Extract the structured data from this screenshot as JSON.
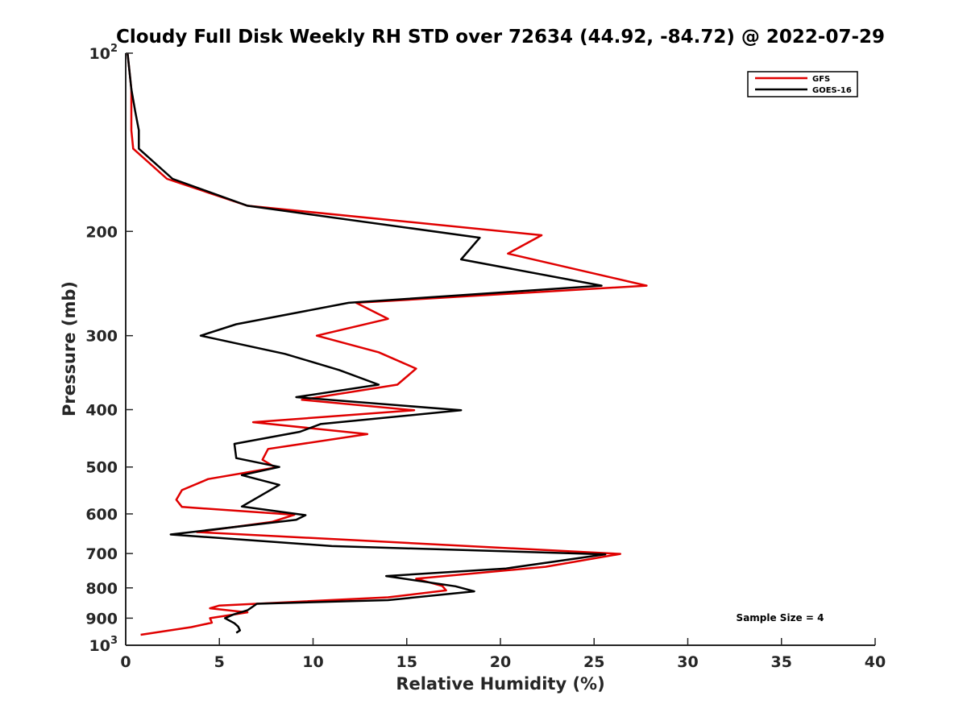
{
  "chart_data": {
    "type": "line",
    "title": "Cloudy Full Disk Weekly RH STD over 72634 (44.92, -84.72) @ 2022-07-29",
    "xlabel": "Relative Humidity (%)",
    "ylabel": "Pressure (mb)",
    "xlim": [
      0,
      40
    ],
    "ylim": [
      100,
      1000
    ],
    "y_scale": "log",
    "y_reversed": true,
    "grid": false,
    "legend_position": "top-right",
    "x_ticks": [
      "0",
      "5",
      "10",
      "15",
      "20",
      "25",
      "30",
      "35",
      "40"
    ],
    "y_ticks": [
      {
        "value": 100,
        "base": "10",
        "exp": "2"
      },
      {
        "value": 200,
        "label": "200"
      },
      {
        "value": 300,
        "label": "300"
      },
      {
        "value": 400,
        "label": "400"
      },
      {
        "value": 500,
        "label": "500"
      },
      {
        "value": 600,
        "label": "600"
      },
      {
        "value": 700,
        "label": "700"
      },
      {
        "value": 800,
        "label": "800"
      },
      {
        "value": 900,
        "label": "900"
      },
      {
        "value": 1000,
        "base": "10",
        "exp": "3"
      }
    ],
    "annotation": "Sample Size = 4",
    "series": [
      {
        "name": "GFS",
        "color": "#e00000",
        "points": [
          [
            0.1,
            100
          ],
          [
            0.3,
            115
          ],
          [
            0.3,
            125
          ],
          [
            0.3,
            135
          ],
          [
            0.4,
            145
          ],
          [
            2.2,
            163
          ],
          [
            6.5,
            181
          ],
          [
            22.2,
            203
          ],
          [
            20.4,
            218
          ],
          [
            27.8,
            247
          ],
          [
            12.3,
            264
          ],
          [
            14.0,
            281
          ],
          [
            10.2,
            300
          ],
          [
            13.5,
            320
          ],
          [
            15.5,
            341
          ],
          [
            14.5,
            363
          ],
          [
            9.4,
            385
          ],
          [
            15.4,
            401
          ],
          [
            6.8,
            420
          ],
          [
            12.9,
            440
          ],
          [
            7.6,
            466
          ],
          [
            7.3,
            486
          ],
          [
            8.0,
            501
          ],
          [
            4.4,
            524
          ],
          [
            3.0,
            547
          ],
          [
            2.7,
            568
          ],
          [
            3.0,
            584
          ],
          [
            9.0,
            602
          ],
          [
            7.8,
            619
          ],
          [
            3.8,
            644
          ],
          [
            26.4,
            701
          ],
          [
            22.4,
            737
          ],
          [
            15.5,
            772
          ],
          [
            16.9,
            794
          ],
          [
            17.1,
            808
          ],
          [
            14.0,
            830
          ],
          [
            5.0,
            857
          ],
          [
            4.5,
            866
          ],
          [
            6.5,
            880
          ],
          [
            4.5,
            900
          ],
          [
            4.6,
            916
          ],
          [
            3.5,
            932
          ],
          [
            0.8,
            960
          ]
        ]
      },
      {
        "name": "GOES-16",
        "color": "#000000",
        "points": [
          [
            0.1,
            100
          ],
          [
            0.3,
            115
          ],
          [
            0.5,
            125
          ],
          [
            0.7,
            135
          ],
          [
            0.7,
            145
          ],
          [
            2.5,
            163
          ],
          [
            6.5,
            181
          ],
          [
            18.9,
            205
          ],
          [
            17.9,
            223
          ],
          [
            25.4,
            247
          ],
          [
            11.9,
            264
          ],
          [
            5.9,
            287
          ],
          [
            4.0,
            300
          ],
          [
            8.5,
            322
          ],
          [
            11.4,
            343
          ],
          [
            13.5,
            363
          ],
          [
            9.1,
            381
          ],
          [
            17.9,
            401
          ],
          [
            10.4,
            423
          ],
          [
            9.3,
            436
          ],
          [
            5.8,
            457
          ],
          [
            5.9,
            483
          ],
          [
            8.2,
            500
          ],
          [
            6.2,
            516
          ],
          [
            8.2,
            536
          ],
          [
            6.2,
            583
          ],
          [
            9.6,
            603
          ],
          [
            9.1,
            614
          ],
          [
            2.4,
            650
          ],
          [
            11.0,
            680
          ],
          [
            25.6,
            702
          ],
          [
            20.3,
            742
          ],
          [
            13.9,
            764
          ],
          [
            17.6,
            795
          ],
          [
            18.6,
            811
          ],
          [
            14.0,
            839
          ],
          [
            7.0,
            851
          ],
          [
            6.5,
            873
          ],
          [
            5.8,
            886
          ],
          [
            5.3,
            900
          ],
          [
            5.8,
            918
          ],
          [
            6.0,
            930
          ],
          [
            6.1,
            944
          ],
          [
            5.9,
            953
          ]
        ]
      }
    ]
  }
}
